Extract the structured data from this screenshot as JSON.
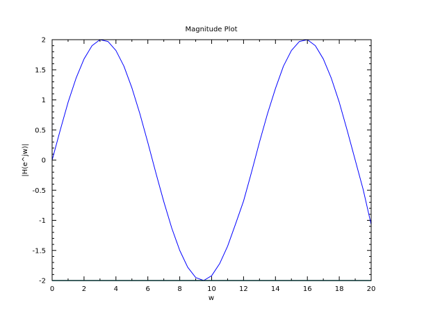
{
  "chart_data": {
    "type": "line",
    "title": "Magnitude Plot",
    "xlabel": "w",
    "ylabel": "|H(e^jw)|",
    "xlim": [
      0,
      20
    ],
    "ylim": [
      -2,
      2
    ],
    "x_ticks": [
      0,
      2,
      4,
      6,
      8,
      10,
      12,
      14,
      16,
      18,
      20
    ],
    "x_tick_labels": [
      "0",
      "2",
      "4",
      "6",
      "8",
      "10",
      "12",
      "14",
      "16",
      "18",
      "20"
    ],
    "y_ticks": [
      -2,
      -1.5,
      -1,
      -0.5,
      0,
      0.5,
      1,
      1.5,
      2
    ],
    "y_tick_labels": [
      "-2",
      "-1.5",
      "-1",
      "-0.5",
      "0",
      "0.5",
      "1",
      "1.5",
      "2"
    ],
    "grid": false,
    "series": [
      {
        "color": "#0000ff",
        "x": [
          0,
          0.5,
          1,
          1.5,
          2,
          2.5,
          3,
          3.5,
          4,
          4.5,
          5,
          5.5,
          6,
          6.5,
          7,
          7.5,
          8,
          8.5,
          9,
          9.5,
          10,
          10.5,
          11,
          11.5,
          12,
          12.5,
          13,
          13.5,
          14,
          14.5,
          15,
          15.5,
          16,
          16.5,
          17,
          17.5,
          18,
          18.5,
          19,
          19.5,
          20
        ],
        "y": [
          0,
          0.49,
          0.96,
          1.36,
          1.68,
          1.9,
          2.0,
          1.97,
          1.82,
          1.56,
          1.2,
          0.77,
          0.29,
          -0.21,
          -0.69,
          -1.13,
          -1.5,
          -1.78,
          -1.95,
          -2.0,
          -1.92,
          -1.72,
          -1.43,
          -1.06,
          -0.68,
          -0.2,
          0.3,
          0.77,
          1.19,
          1.56,
          1.82,
          1.97,
          2.0,
          1.9,
          1.68,
          1.36,
          0.96,
          0.49,
          0.0,
          -0.49,
          -1.07
        ]
      },
      {
        "color": "#008080",
        "x": [
          0,
          20
        ],
        "y": [
          -2,
          -2
        ]
      }
    ]
  }
}
